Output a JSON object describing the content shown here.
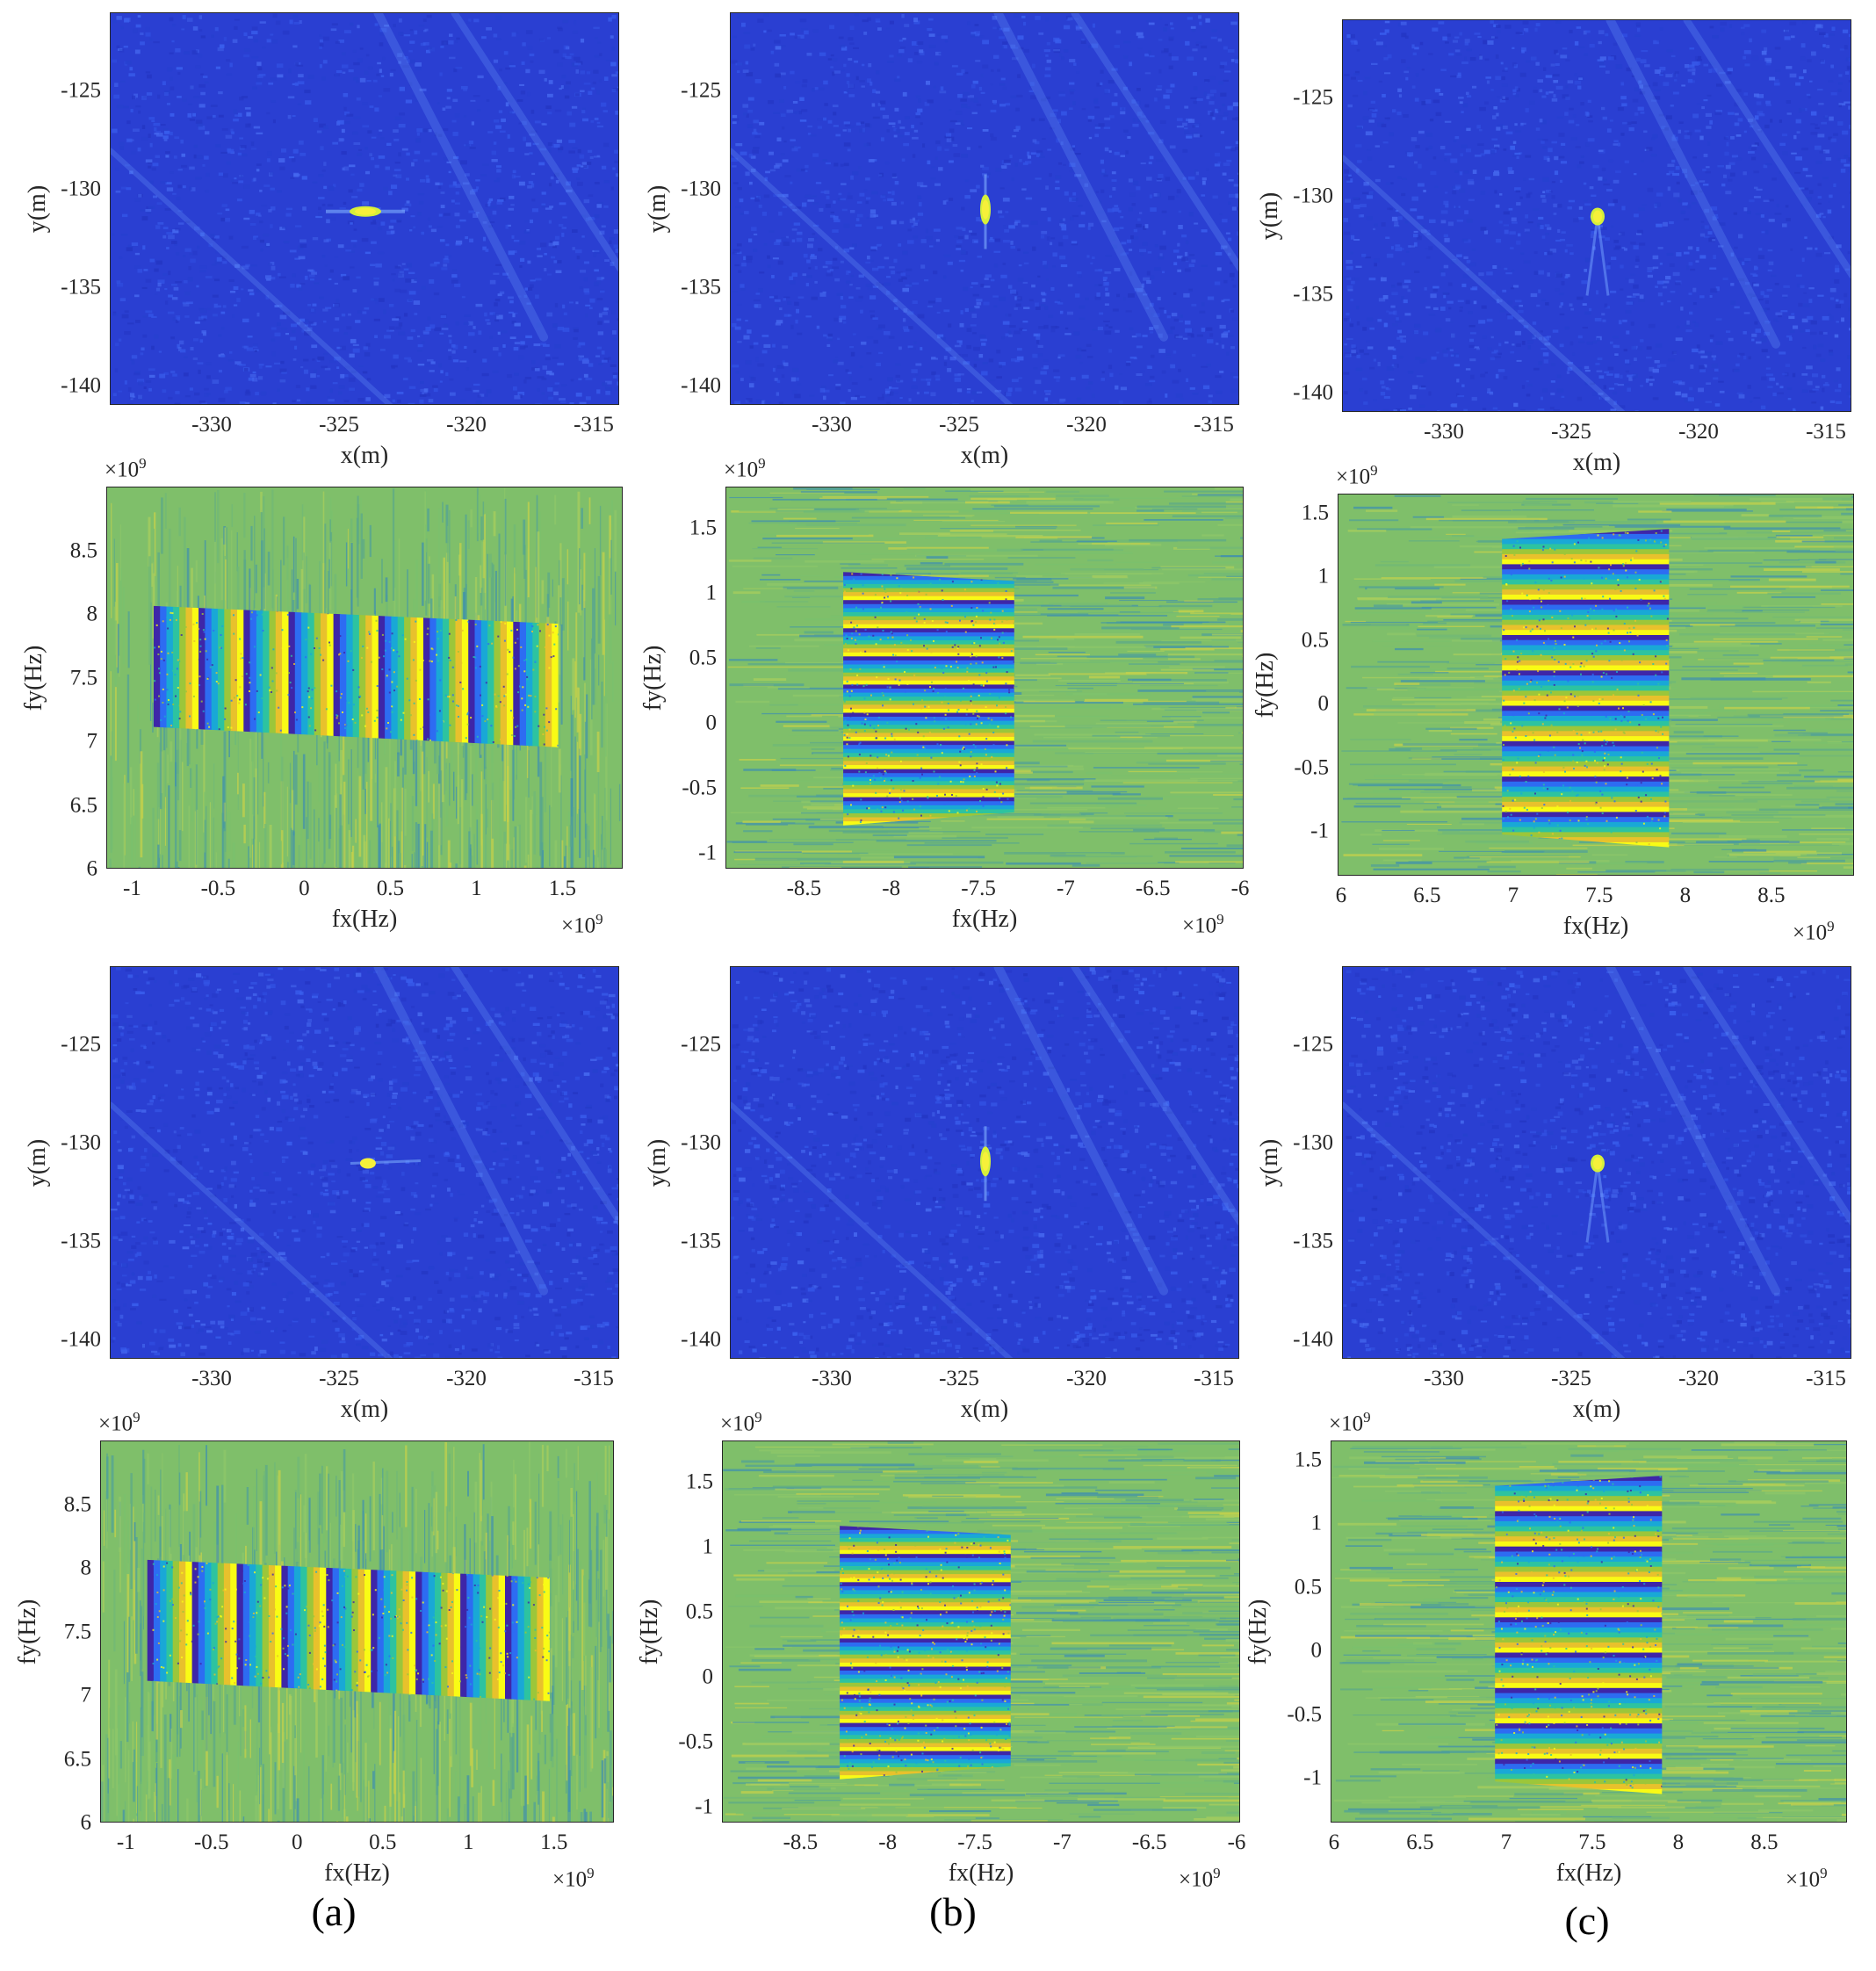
{
  "figure": {
    "captions": [
      "(a)",
      "(b)",
      "(c)"
    ],
    "colors": {
      "background_low": "#2a3fd2",
      "speckle_high": "#4a6ef0",
      "peak": "#f6f03a",
      "fringe_palette": [
        "#3e26a8",
        "#2d6cf2",
        "#19a8d6",
        "#2dc3a0",
        "#9cc63a",
        "#e8c12c",
        "#f9fb15"
      ],
      "noise_green": "#7fbf6a"
    }
  },
  "chart_data": [
    {
      "id": "a-img-1",
      "type": "heatmap",
      "kind": "image",
      "xlabel": "x(m)",
      "ylabel": "y(m)",
      "xlim": [
        -334,
        -314
      ],
      "ylim": [
        -141,
        -121
      ],
      "xticks": [
        "-330",
        "-325",
        "-320",
        "-315"
      ],
      "yticks": [
        "-125",
        "-130",
        "-135",
        "-140"
      ],
      "target": {
        "x": -324,
        "y": -131.1,
        "shape": "horizontal"
      }
    },
    {
      "id": "a-phase-1",
      "type": "heatmap",
      "kind": "phase",
      "xlabel": "fx(Hz)",
      "ylabel": "fy(Hz)",
      "xlim": [
        -1.15,
        1.85
      ],
      "ylim": [
        6.0,
        9.0
      ],
      "xticks": [
        "-1",
        "-0.5",
        "0",
        "0.5",
        "1",
        "1.5"
      ],
      "yticks": [
        "8.5",
        "8",
        "7.5",
        "7",
        "6.5",
        "6"
      ],
      "exp_x": "×10",
      "exp_y": "×10",
      "exp_power": "9",
      "fringe": {
        "orientation": "vertical",
        "x0": -0.88,
        "x1": 1.47,
        "y_top": [
          8.07,
          7.93
        ],
        "y_bot": [
          7.12,
          6.96
        ]
      }
    },
    {
      "id": "b-img-1",
      "type": "heatmap",
      "kind": "image",
      "xlabel": "x(m)",
      "ylabel": "y(m)",
      "xlim": [
        -334,
        -314
      ],
      "ylim": [
        -141,
        -121
      ],
      "xticks": [
        "-330",
        "-325",
        "-320",
        "-315"
      ],
      "yticks": [
        "-125",
        "-130",
        "-135",
        "-140"
      ],
      "target": {
        "x": -324,
        "y": -131.0,
        "shape": "vertical"
      }
    },
    {
      "id": "b-phase-1",
      "type": "heatmap",
      "kind": "phase",
      "xlabel": "fx(Hz)",
      "ylabel": "fy(Hz)",
      "xlim": [
        -8.95,
        -5.98
      ],
      "ylim": [
        -1.12,
        1.82
      ],
      "xticks": [
        "-8.5",
        "-8",
        "-7.5",
        "-7",
        "-6.5",
        "-6"
      ],
      "yticks": [
        "1.5",
        "1",
        "0.5",
        "0",
        "-0.5",
        "-1"
      ],
      "exp_x": "×10",
      "exp_y": "×10",
      "exp_power": "9",
      "fringe": {
        "orientation": "horizontal",
        "x0": -8.28,
        "x1": -7.3,
        "y_top": [
          1.17,
          1.1
        ],
        "y_bot": [
          -0.78,
          -0.68
        ]
      }
    },
    {
      "id": "c-img-1",
      "type": "heatmap",
      "kind": "image",
      "xlabel": "x(m)",
      "ylabel": "y(m)",
      "xlim": [
        -334,
        -314
      ],
      "ylim": [
        -141,
        -121
      ],
      "xticks": [
        "-330",
        "-325",
        "-320",
        "-315"
      ],
      "yticks": [
        "-125",
        "-130",
        "-135",
        "-140"
      ],
      "target": {
        "x": -324,
        "y": -131.0,
        "shape": "round"
      }
    },
    {
      "id": "c-phase-1",
      "type": "heatmap",
      "kind": "phase",
      "xlabel": "fx(Hz)",
      "ylabel": "fy(Hz)",
      "xlim": [
        5.98,
        8.98
      ],
      "ylim": [
        -1.35,
        1.65
      ],
      "xticks": [
        "6",
        "6.5",
        "7",
        "7.5",
        "8",
        "8.5"
      ],
      "yticks": [
        "1.5",
        "1",
        "0.5",
        "0",
        "-0.5",
        "-1"
      ],
      "exp_x": "×10",
      "exp_y": "×10",
      "exp_power": "9",
      "fringe": {
        "orientation": "horizontal",
        "x0": 6.93,
        "x1": 7.9,
        "y_top": [
          1.3,
          1.38
        ],
        "y_bot": [
          -1.02,
          -1.12
        ]
      }
    },
    {
      "id": "a-img-2",
      "type": "heatmap",
      "kind": "image",
      "xlabel": "x(m)",
      "ylabel": "y(m)",
      "xlim": [
        -334,
        -314
      ],
      "ylim": [
        -141,
        -121
      ],
      "xticks": [
        "-330",
        "-325",
        "-320",
        "-315"
      ],
      "yticks": [
        "-125",
        "-130",
        "-135",
        "-140"
      ],
      "target": {
        "x": -323.9,
        "y": -131.0,
        "shape": "small"
      }
    },
    {
      "id": "a-phase-2",
      "type": "heatmap",
      "kind": "phase",
      "xlabel": "fx(Hz)",
      "ylabel": "fy(Hz)",
      "xlim": [
        -1.15,
        1.85
      ],
      "ylim": [
        6.0,
        9.0
      ],
      "xticks": [
        "-1",
        "-0.5",
        "0",
        "0.5",
        "1",
        "1.5"
      ],
      "yticks": [
        "8.5",
        "8",
        "7.5",
        "7",
        "6.5",
        "6"
      ],
      "exp_x": "×10",
      "exp_y": "×10",
      "exp_power": "9",
      "fringe": {
        "orientation": "vertical",
        "x0": -0.88,
        "x1": 1.47,
        "y_top": [
          8.07,
          7.93
        ],
        "y_bot": [
          7.12,
          6.96
        ]
      }
    },
    {
      "id": "b-img-2",
      "type": "heatmap",
      "kind": "image",
      "xlabel": "x(m)",
      "ylabel": "y(m)",
      "xlim": [
        -334,
        -314
      ],
      "ylim": [
        -141,
        -121
      ],
      "xticks": [
        "-330",
        "-325",
        "-320",
        "-315"
      ],
      "yticks": [
        "-125",
        "-130",
        "-135",
        "-140"
      ],
      "target": {
        "x": -324,
        "y": -130.9,
        "shape": "vertical"
      }
    },
    {
      "id": "b-phase-2",
      "type": "heatmap",
      "kind": "phase",
      "xlabel": "fx(Hz)",
      "ylabel": "fy(Hz)",
      "xlim": [
        -8.95,
        -5.98
      ],
      "ylim": [
        -1.12,
        1.82
      ],
      "xticks": [
        "-8.5",
        "-8",
        "-7.5",
        "-7",
        "-6.5",
        "-6"
      ],
      "yticks": [
        "1.5",
        "1",
        "0.5",
        "0",
        "-0.5",
        "-1"
      ],
      "exp_x": "×10",
      "exp_y": "×10",
      "exp_power": "9",
      "fringe": {
        "orientation": "horizontal",
        "x0": -8.28,
        "x1": -7.3,
        "y_top": [
          1.17,
          1.1
        ],
        "y_bot": [
          -0.78,
          -0.68
        ]
      }
    },
    {
      "id": "c-img-2",
      "type": "heatmap",
      "kind": "image",
      "xlabel": "x(m)",
      "ylabel": "y(m)",
      "xlim": [
        -334,
        -314
      ],
      "ylim": [
        -141,
        -121
      ],
      "xticks": [
        "-330",
        "-325",
        "-320",
        "-315"
      ],
      "yticks": [
        "-125",
        "-130",
        "-135",
        "-140"
      ],
      "target": {
        "x": -324,
        "y": -131.0,
        "shape": "round"
      }
    },
    {
      "id": "c-phase-2",
      "type": "heatmap",
      "kind": "phase",
      "xlabel": "fx(Hz)",
      "ylabel": "fy(Hz)",
      "xlim": [
        5.98,
        8.98
      ],
      "ylim": [
        -1.35,
        1.65
      ],
      "xticks": [
        "6",
        "6.5",
        "7",
        "7.5",
        "8",
        "8.5"
      ],
      "yticks": [
        "1.5",
        "1",
        "0.5",
        "0",
        "-0.5",
        "-1"
      ],
      "exp_x": "×10",
      "exp_y": "×10",
      "exp_power": "9",
      "fringe": {
        "orientation": "horizontal",
        "x0": 6.93,
        "x1": 7.9,
        "y_top": [
          1.3,
          1.38
        ],
        "y_bot": [
          -1.02,
          -1.12
        ]
      }
    }
  ]
}
